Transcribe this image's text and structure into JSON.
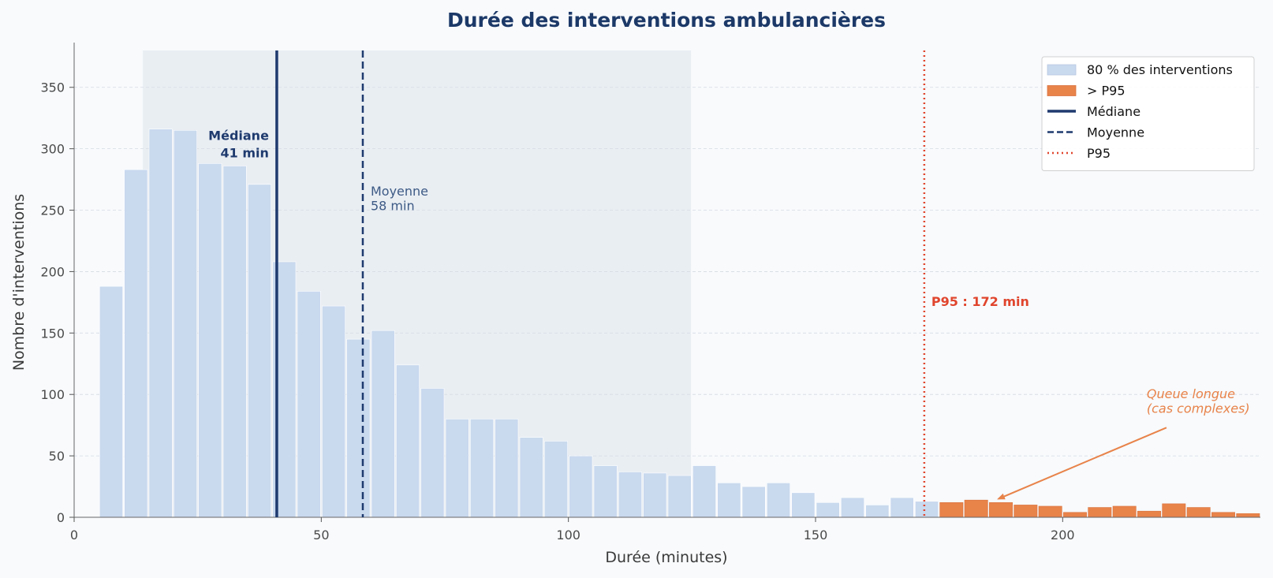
{
  "chart_data": {
    "type": "bar",
    "title": "Durée des interventions ambulancières",
    "xlabel": "Durée (minutes)",
    "ylabel": "Nombre d'interventions",
    "xlim": [
      0,
      240
    ],
    "ylim": [
      0,
      380
    ],
    "x_ticks": [
      0,
      50,
      100,
      150,
      200
    ],
    "y_ticks": [
      0,
      50,
      100,
      150,
      200,
      250,
      300,
      350
    ],
    "bin_width": 5,
    "grid": "horizontal",
    "legend_position": "top-right",
    "bins_start": [
      5,
      10,
      15,
      20,
      25,
      30,
      35,
      40,
      45,
      50,
      55,
      60,
      65,
      70,
      75,
      80,
      85,
      90,
      95,
      100,
      105,
      110,
      115,
      120,
      125,
      130,
      135,
      140,
      145,
      150,
      155,
      160,
      165,
      170,
      175,
      180,
      185,
      190,
      195,
      200,
      205,
      210,
      215,
      220,
      225,
      230,
      235
    ],
    "values": [
      188,
      283,
      316,
      315,
      288,
      286,
      271,
      208,
      184,
      172,
      145,
      152,
      124,
      105,
      80,
      80,
      80,
      65,
      62,
      50,
      42,
      37,
      36,
      34,
      42,
      28,
      25,
      28,
      20,
      12,
      16,
      10,
      16,
      13,
      12,
      14,
      12,
      10,
      9,
      4,
      8,
      9,
      5,
      11,
      8,
      4,
      3
    ],
    "shaded_region": {
      "label": "80 % des interventions",
      "from": 13.9,
      "to": 124.8,
      "color": "#e4e9f0"
    },
    "colors": {
      "normal": "#c9d9ee",
      "tail": "#e8834a",
      "median": "#1e3a6e",
      "mean": "#1e3a6e",
      "p95": "#e0452d"
    },
    "median": {
      "value": 41,
      "annotation_line1": "Médiane",
      "annotation_line2": "41 min"
    },
    "mean": {
      "value": 58.4,
      "annotation_line1": "Moyenne",
      "annotation_line2": "58 min"
    },
    "p95": {
      "value": 172,
      "annotation": "P95 : 172 min"
    },
    "tail_note": {
      "line1": "Queue longue",
      "line2": "(cas complexes)",
      "arrow_target_x": 187,
      "arrow_target_y": 15,
      "text_x": 217,
      "text_y": 85
    },
    "legend": [
      {
        "label": "80 % des interventions",
        "kind": "patch",
        "color": "#c9d9ee"
      },
      {
        "label": "> P95",
        "kind": "patch",
        "color": "#e8834a"
      },
      {
        "label": "Médiane",
        "kind": "solid",
        "color": "#1e3a6e"
      },
      {
        "label": "Moyenne",
        "kind": "dashed",
        "color": "#1e3a6e"
      },
      {
        "label": "P95",
        "kind": "dotted",
        "color": "#e0452d"
      }
    ]
  }
}
